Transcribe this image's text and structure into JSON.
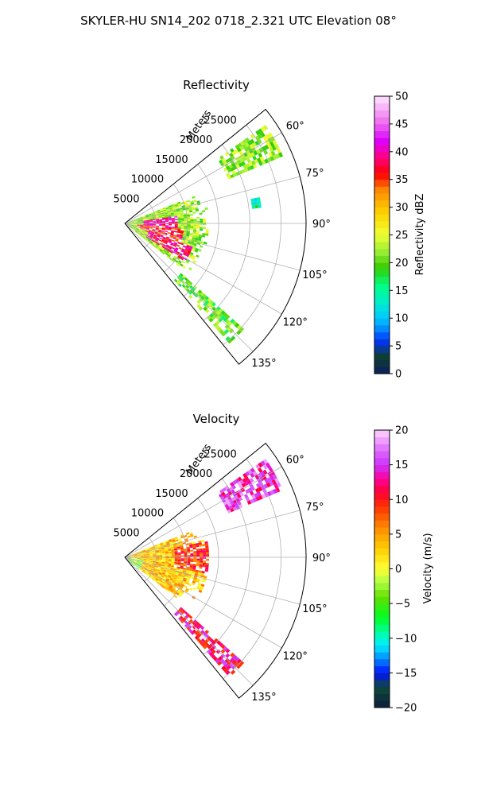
{
  "suptitle": "SKYLER-HU  SN14_202  0718_2.321 UTC Elevation 08°",
  "chart_data": [
    {
      "type": "heatmap",
      "projection": "polar-sector",
      "title": "Reflectivity",
      "range_axis_label": "Meters",
      "range_ticks": [
        5000,
        10000,
        15000,
        20000,
        25000
      ],
      "range_tick_labels": [
        "5000",
        "10000",
        "15000",
        "20000",
        "25000"
      ],
      "rmax": 29000,
      "theta_range_deg": [
        51,
        141
      ],
      "theta_ticks": [
        60,
        75,
        90,
        105,
        120,
        135
      ],
      "theta_tick_labels": [
        "60°",
        "75°",
        "90°",
        "105°",
        "120°",
        "135°"
      ],
      "grid": true,
      "colorbar": {
        "label": "Reflectivity dBZ",
        "range": [
          0,
          50
        ],
        "ticks": [
          0,
          5,
          10,
          15,
          20,
          25,
          30,
          35,
          40,
          45,
          50
        ],
        "tick_labels": [
          "0",
          "5",
          "10",
          "15",
          "20",
          "25",
          "30",
          "35",
          "40",
          "45",
          "50"
        ],
        "colormap": "NWSRef"
      },
      "echo_regions": [
        {
          "name": "main-echo",
          "theta": [
            68,
            127
          ],
          "r": [
            0,
            13000
          ],
          "typical": 22
        },
        {
          "name": "core-1",
          "theta": [
            95,
            110
          ],
          "r": [
            2000,
            9000
          ],
          "typical": 36
        },
        {
          "name": "core-2",
          "theta": [
            82,
            95
          ],
          "r": [
            3000,
            8000
          ],
          "typical": 40
        },
        {
          "name": "core-3",
          "theta": [
            108,
            122
          ],
          "r": [
            4000,
            11000
          ],
          "typical": 38
        },
        {
          "name": "far-band-ne",
          "theta": [
            55,
            66
          ],
          "r": [
            18000,
            27000
          ],
          "typical": 22
        },
        {
          "name": "far-band-se",
          "theta": [
            131,
            138
          ],
          "r": [
            12000,
            25000
          ],
          "typical": 20
        },
        {
          "name": "small-cell-e",
          "theta": [
            78,
            82
          ],
          "r": [
            20500,
            21500
          ],
          "typical": 15
        }
      ]
    },
    {
      "type": "heatmap",
      "projection": "polar-sector",
      "title": "Velocity",
      "range_axis_label": "Meters",
      "range_ticks": [
        5000,
        10000,
        15000,
        20000,
        25000
      ],
      "range_tick_labels": [
        "5000",
        "10000",
        "15000",
        "20000",
        "25000"
      ],
      "rmax": 29000,
      "theta_range_deg": [
        51,
        141
      ],
      "theta_ticks": [
        60,
        75,
        90,
        105,
        120,
        135
      ],
      "theta_tick_labels": [
        "60°",
        "75°",
        "90°",
        "105°",
        "120°",
        "135°"
      ],
      "grid": true,
      "colorbar": {
        "label": "Velocity (m/s)",
        "range": [
          -20,
          20
        ],
        "ticks": [
          -20,
          -15,
          -10,
          -5,
          0,
          5,
          10,
          15,
          20
        ],
        "tick_labels": [
          "−20",
          "−15",
          "−10",
          "−5",
          "0",
          "5",
          "10",
          "15",
          "20"
        ],
        "colormap": "NWSVel"
      },
      "echo_regions": [
        {
          "name": "main-echo",
          "theta": [
            68,
            127
          ],
          "r": [
            0,
            13000
          ],
          "typical": 3
        },
        {
          "name": "near-origin",
          "theta": [
            95,
            130
          ],
          "r": [
            0,
            2500
          ],
          "typical": -3
        },
        {
          "name": "east-edge",
          "theta": [
            78,
            100
          ],
          "r": [
            8000,
            13000
          ],
          "typical": 9
        },
        {
          "name": "far-band-ne",
          "theta": [
            55,
            66
          ],
          "r": [
            18000,
            27000
          ],
          "typical": 15
        },
        {
          "name": "far-band-se",
          "theta": [
            131,
            138
          ],
          "r": [
            12000,
            25000
          ],
          "typical": 12
        }
      ]
    }
  ]
}
